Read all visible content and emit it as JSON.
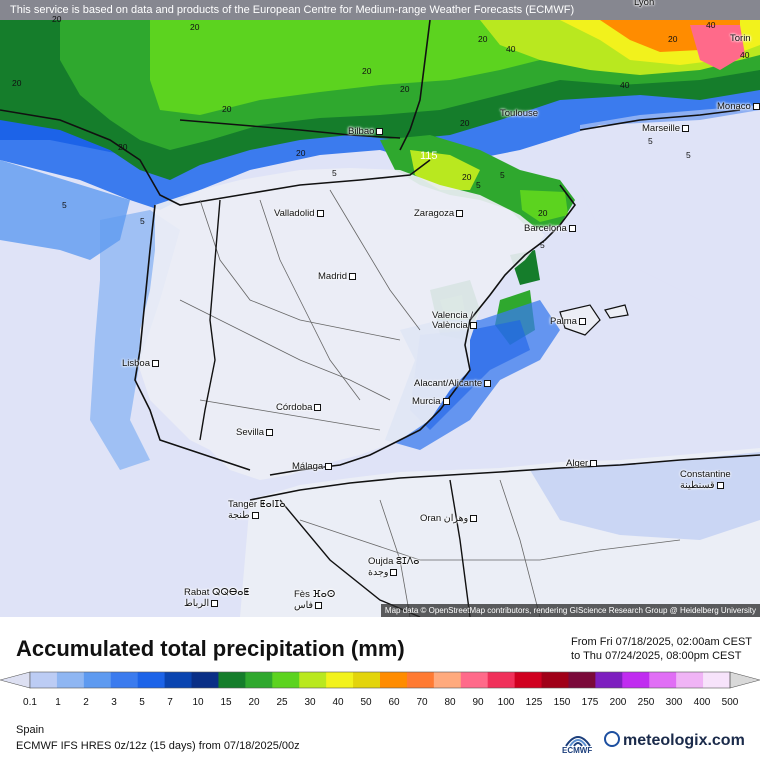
{
  "notice": "This service is based on data and products of the European Centre for Medium-range Weather Forecasts (ECMWF)",
  "attribution": "Map data © OpenStreetMap contributors, rendering GIScience Research Group @ Heidelberg University",
  "cities": [
    {
      "name": "Lyon"
    },
    {
      "name": "Torin"
    },
    {
      "name": "Monaco"
    },
    {
      "name": "Marseille"
    },
    {
      "name": "Toulouse"
    },
    {
      "name": "Bilbao"
    },
    {
      "name": "Valladolid"
    },
    {
      "name": "Zaragoza"
    },
    {
      "name": "Barcelona"
    },
    {
      "name": "Madrid"
    },
    {
      "name": "Valencia / València"
    },
    {
      "name": "Palma"
    },
    {
      "name": "Lisboa"
    },
    {
      "name": "Alacant/Alicante"
    },
    {
      "name": "Murcia"
    },
    {
      "name": "Córdoba"
    },
    {
      "name": "Sevilla"
    },
    {
      "name": "Málaga"
    },
    {
      "name": "Alger"
    },
    {
      "name": "Constantine قسنطينة"
    },
    {
      "name": "Tanger ⵟⴰⵏⵊⴰ طنجة"
    },
    {
      "name": "Oran وهران"
    },
    {
      "name": "Oujda ⵓⵊⴷⴰ وجدة"
    },
    {
      "name": "Rabat ⵕⵕⴱⴰⵟ الرباط"
    },
    {
      "name": "Fès ⴼⴰⵙ فاس"
    }
  ],
  "contour_labels": [
    "20",
    "20",
    "20",
    "20",
    "20",
    "20",
    "20",
    "20",
    "20",
    "20",
    "20",
    "20",
    "20",
    "40",
    "40",
    "40",
    "40",
    "5",
    "5",
    "5",
    "5",
    "5",
    "5",
    "5",
    "5",
    "115"
  ],
  "title": "Accumulated total precipitation (mm)",
  "date_from": "From Fri 07/18/2025, 02:00am CEST",
  "date_to": "to Thu 07/24/2025, 08:00pm CEST",
  "legend": {
    "labels": [
      "0.1",
      "1",
      "2",
      "3",
      "5",
      "7",
      "10",
      "15",
      "20",
      "25",
      "30",
      "40",
      "50",
      "60",
      "70",
      "80",
      "90",
      "100",
      "125",
      "150",
      "175",
      "200",
      "250",
      "300",
      "400",
      "500"
    ],
    "colors": [
      "#dde0f2",
      "#bcccf4",
      "#8fb6f2",
      "#5e9af0",
      "#3b7bee",
      "#1c63e8",
      "#0a44b0",
      "#0a2f86",
      "#157d2b",
      "#2fa82e",
      "#5cd31f",
      "#b9e81f",
      "#f2f21c",
      "#e3d40c",
      "#ff8c00",
      "#ff7a32",
      "#ffaa7d",
      "#ff6a8a",
      "#f0305a",
      "#d00020",
      "#a00018",
      "#7a0a3a",
      "#7d1fbf",
      "#c02cf0",
      "#e06ef5",
      "#f0b4f6",
      "#f7e3fb",
      "#d9d9d9"
    ]
  },
  "region": "Spain",
  "model": "ECMWF IFS HRES 0z/12z (15 days)  from  07/18/2025/00z",
  "ecmwf_logo_text": "ECMWF",
  "brand": "meteologix.com"
}
